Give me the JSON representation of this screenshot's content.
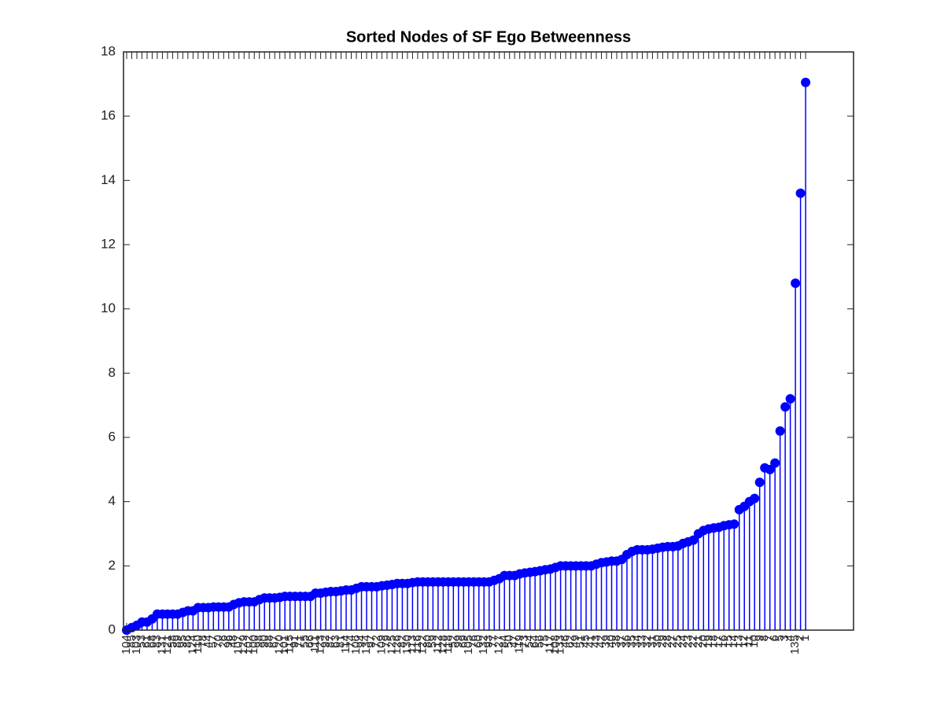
{
  "chart_data": {
    "type": "stem",
    "title": "Sorted Nodes of SF Ego Betweenness",
    "color": "#0000ff",
    "xlim": [
      1,
      144
    ],
    "ylim": [
      0,
      18
    ],
    "yticks": [
      0,
      2,
      4,
      6,
      8,
      10,
      12,
      14,
      16,
      18
    ],
    "categories": [
      "104",
      "85",
      "103",
      "53",
      "61",
      "68",
      "83",
      "131",
      "121",
      "58",
      "89",
      "95",
      "86",
      "124",
      "110",
      "78",
      "44",
      "57",
      "70",
      "26",
      "96",
      "48",
      "107",
      "129",
      "102",
      "100",
      "98",
      "90",
      "88",
      "67",
      "120",
      "101",
      "115",
      "91",
      "71",
      "55",
      "66",
      "111",
      "123",
      "92",
      "87",
      "63",
      "81",
      "114",
      "74",
      "106",
      "94",
      "134",
      "97",
      "72",
      "109",
      "79",
      "125",
      "126",
      "82",
      "130",
      "113",
      "116",
      "122",
      "80",
      "59",
      "112",
      "128",
      "118",
      "52",
      "99",
      "69",
      "105",
      "76",
      "60",
      "132",
      "93",
      "77",
      "127",
      "84",
      "50",
      "47",
      "119",
      "73",
      "54",
      "64",
      "56",
      "75",
      "117",
      "108",
      "133",
      "46",
      "62",
      "49",
      "51",
      "45",
      "41",
      "43",
      "42",
      "39",
      "40",
      "38",
      "37",
      "36",
      "35",
      "34",
      "33",
      "32",
      "31",
      "30",
      "29",
      "28",
      "27",
      "25",
      "24",
      "23",
      "22",
      "21",
      "20",
      "19",
      "18",
      "17",
      "16",
      "15",
      "14",
      "13",
      "12",
      "11",
      "10",
      "9",
      "8",
      "7",
      "6",
      "5",
      "3",
      "4",
      "135",
      "2",
      "1"
    ],
    "values": [
      0,
      0.08,
      0.15,
      0.25,
      0.25,
      0.35,
      0.5,
      0.5,
      0.5,
      0.5,
      0.5,
      0.55,
      0.6,
      0.6,
      0.7,
      0.7,
      0.7,
      0.72,
      0.72,
      0.72,
      0.72,
      0.8,
      0.85,
      0.88,
      0.88,
      0.88,
      0.95,
      1.0,
      1.0,
      1.0,
      1.02,
      1.05,
      1.05,
      1.05,
      1.05,
      1.05,
      1.05,
      1.15,
      1.15,
      1.18,
      1.2,
      1.2,
      1.22,
      1.25,
      1.25,
      1.3,
      1.35,
      1.35,
      1.35,
      1.35,
      1.38,
      1.4,
      1.42,
      1.45,
      1.45,
      1.45,
      1.48,
      1.5,
      1.5,
      1.5,
      1.5,
      1.5,
      1.5,
      1.5,
      1.5,
      1.5,
      1.5,
      1.5,
      1.5,
      1.5,
      1.5,
      1.5,
      1.55,
      1.6,
      1.7,
      1.7,
      1.7,
      1.75,
      1.78,
      1.8,
      1.82,
      1.85,
      1.88,
      1.9,
      1.95,
      2.0,
      2.0,
      2.0,
      2.0,
      2.0,
      2.0,
      2.0,
      2.05,
      2.1,
      2.12,
      2.15,
      2.15,
      2.2,
      2.35,
      2.45,
      2.5,
      2.5,
      2.5,
      2.52,
      2.55,
      2.58,
      2.6,
      2.6,
      2.62,
      2.7,
      2.75,
      2.8,
      3.0,
      3.1,
      3.15,
      3.18,
      3.2,
      3.25,
      3.28,
      3.3,
      3.75,
      3.85,
      4.0,
      4.1,
      4.6,
      5.05,
      5.0,
      5.2,
      6.2,
      6.95,
      7.2,
      10.8,
      13.6,
      17.05
    ]
  }
}
